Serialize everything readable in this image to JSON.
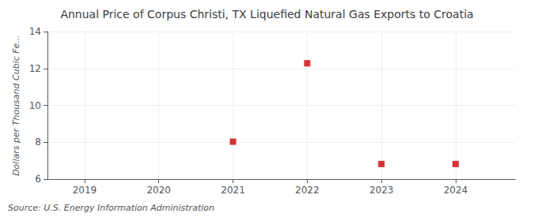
{
  "chart_data": {
    "type": "scatter",
    "title": "Annual Price of Corpus Christi, TX Liquefied Natural Gas Exports to Croatia",
    "ylabel": "Dollars per Thousand Cubic Fe...",
    "annotation": "Source: U.S. Energy Information Administration",
    "x": [
      2021,
      2022,
      2023,
      2024
    ],
    "values": [
      8.03,
      12.28,
      6.82,
      6.82
    ],
    "color": "#cc0000",
    "marker": "square",
    "xlim": [
      2018.5,
      2024.8
    ],
    "xticks": [
      2019,
      2020,
      2021,
      2022,
      2023,
      2024
    ],
    "ylim": [
      6,
      14
    ],
    "yticks": [
      6,
      8,
      10,
      12,
      14
    ],
    "grid": true
  }
}
